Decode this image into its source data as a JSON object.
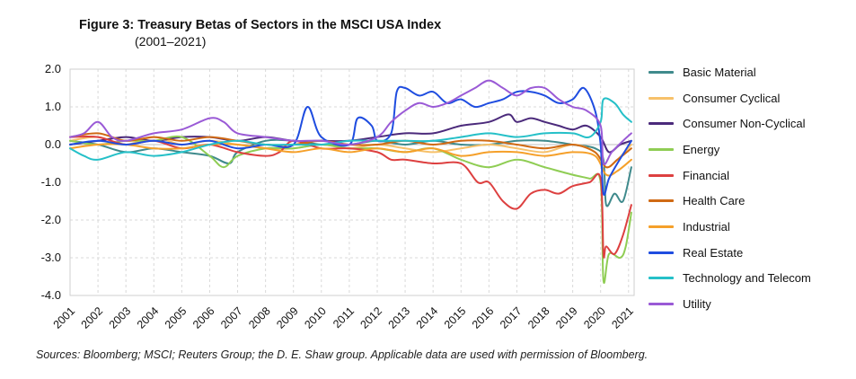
{
  "chart_data": {
    "type": "line",
    "title": "Figure 3: Treasury Betas of Sectors in the MSCI USA Index",
    "subtitle": "(2001–2021)",
    "xlabel": "",
    "ylabel": "",
    "xlim": [
      2001,
      2021.2
    ],
    "ylim": [
      -4.0,
      2.0
    ],
    "ytick_labels": [
      "2.0",
      "1.0",
      "0.0",
      "-1.0",
      "-2.0",
      "-3.0",
      "-4.0"
    ],
    "yticks": [
      2.0,
      1.0,
      0.0,
      -1.0,
      -2.0,
      -3.0,
      -4.0
    ],
    "xticks": [
      2001,
      2002,
      2003,
      2004,
      2005,
      2006,
      2007,
      2008,
      2009,
      2010,
      2011,
      2012,
      2013,
      2014,
      2015,
      2016,
      2017,
      2018,
      2019,
      2020,
      2021
    ],
    "xtick_labels": [
      "2001",
      "2002",
      "2003",
      "2004",
      "2005",
      "2006",
      "2007",
      "2008",
      "2009",
      "2010",
      "2011",
      "2012",
      "2013",
      "2014",
      "2015",
      "2016",
      "2017",
      "2018",
      "2019",
      "2020",
      "2021"
    ],
    "grid": true,
    "legend_position": "right",
    "series": [
      {
        "name": "Basic Material",
        "color": "#3f8a8c",
        "points": [
          [
            2001,
            0.1
          ],
          [
            2002,
            0.0
          ],
          [
            2003,
            -0.2
          ],
          [
            2004,
            -0.1
          ],
          [
            2005,
            -0.2
          ],
          [
            2006,
            -0.3
          ],
          [
            2006.7,
            -0.5
          ],
          [
            2007,
            -0.2
          ],
          [
            2008,
            0.1
          ],
          [
            2009,
            0.1
          ],
          [
            2010,
            0.0
          ],
          [
            2011,
            0.0
          ],
          [
            2012,
            0.1
          ],
          [
            2013,
            0.0
          ],
          [
            2014,
            0.1
          ],
          [
            2015,
            0.0
          ],
          [
            2016,
            0.0
          ],
          [
            2017,
            0.1
          ],
          [
            2018,
            0.1
          ],
          [
            2019,
            0.0
          ],
          [
            2019.8,
            -0.1
          ],
          [
            2020.1,
            -0.4
          ],
          [
            2020.2,
            -1.6
          ],
          [
            2020.5,
            -1.3
          ],
          [
            2020.8,
            -1.5
          ],
          [
            2021.1,
            -0.6
          ]
        ]
      },
      {
        "name": "Consumer Cyclical",
        "color": "#f7c16a",
        "points": [
          [
            2001,
            0.1
          ],
          [
            2002,
            0.2
          ],
          [
            2003,
            0.0
          ],
          [
            2004,
            0.2
          ],
          [
            2005,
            0.0
          ],
          [
            2006,
            0.1
          ],
          [
            2007,
            0.0
          ],
          [
            2008,
            -0.1
          ],
          [
            2009,
            -0.1
          ],
          [
            2010,
            0.0
          ],
          [
            2011,
            -0.1
          ],
          [
            2012,
            0.0
          ],
          [
            2013,
            -0.1
          ],
          [
            2014,
            -0.2
          ],
          [
            2015,
            -0.1
          ],
          [
            2016,
            0.0
          ],
          [
            2017,
            -0.1
          ],
          [
            2018,
            -0.2
          ],
          [
            2019,
            0.0
          ],
          [
            2019.8,
            -0.2
          ],
          [
            2020.2,
            -0.6
          ],
          [
            2020.6,
            -0.4
          ],
          [
            2021.1,
            0.0
          ]
        ]
      },
      {
        "name": "Consumer Non-Cyclical",
        "color": "#4b2a7b",
        "points": [
          [
            2001,
            0.0
          ],
          [
            2002,
            0.1
          ],
          [
            2003,
            0.2
          ],
          [
            2004,
            0.1
          ],
          [
            2005,
            0.2
          ],
          [
            2006,
            0.2
          ],
          [
            2007,
            0.1
          ],
          [
            2008,
            0.2
          ],
          [
            2009,
            0.1
          ],
          [
            2010,
            0.1
          ],
          [
            2011,
            0.1
          ],
          [
            2012,
            0.2
          ],
          [
            2013,
            0.3
          ],
          [
            2014,
            0.3
          ],
          [
            2015,
            0.5
          ],
          [
            2016,
            0.6
          ],
          [
            2016.7,
            0.8
          ],
          [
            2017,
            0.6
          ],
          [
            2017.5,
            0.7
          ],
          [
            2018,
            0.6
          ],
          [
            2018.5,
            0.5
          ],
          [
            2019,
            0.4
          ],
          [
            2019.5,
            0.5
          ],
          [
            2020,
            0.2
          ],
          [
            2020.3,
            -0.2
          ],
          [
            2020.7,
            0.0
          ],
          [
            2021.1,
            0.1
          ]
        ]
      },
      {
        "name": "Energy",
        "color": "#8fcd54",
        "points": [
          [
            2001,
            0.1
          ],
          [
            2002,
            0.0
          ],
          [
            2003,
            0.1
          ],
          [
            2004,
            0.1
          ],
          [
            2005,
            0.2
          ],
          [
            2006,
            -0.3
          ],
          [
            2006.5,
            -0.6
          ],
          [
            2007,
            -0.3
          ],
          [
            2008,
            -0.1
          ],
          [
            2009,
            -0.1
          ],
          [
            2010,
            0.0
          ],
          [
            2011,
            -0.1
          ],
          [
            2012,
            -0.1
          ],
          [
            2013,
            -0.2
          ],
          [
            2014,
            -0.1
          ],
          [
            2015,
            -0.4
          ],
          [
            2016,
            -0.6
          ],
          [
            2017,
            -0.4
          ],
          [
            2018,
            -0.6
          ],
          [
            2019,
            -0.8
          ],
          [
            2019.6,
            -0.9
          ],
          [
            2020.0,
            -1.0
          ],
          [
            2020.1,
            -3.6
          ],
          [
            2020.3,
            -2.9
          ],
          [
            2020.7,
            -3.0
          ],
          [
            2020.9,
            -2.7
          ],
          [
            2021.1,
            -1.8
          ]
        ]
      },
      {
        "name": "Financial",
        "color": "#dd4040",
        "points": [
          [
            2001,
            0.2
          ],
          [
            2002,
            0.2
          ],
          [
            2003,
            0.0
          ],
          [
            2004,
            0.1
          ],
          [
            2005,
            -0.1
          ],
          [
            2006,
            0.0
          ],
          [
            2007,
            -0.2
          ],
          [
            2008,
            -0.3
          ],
          [
            2008.5,
            -0.2
          ],
          [
            2009,
            0.1
          ],
          [
            2010,
            -0.1
          ],
          [
            2011,
            -0.1
          ],
          [
            2012,
            -0.2
          ],
          [
            2012.5,
            -0.4
          ],
          [
            2013,
            -0.4
          ],
          [
            2014,
            -0.5
          ],
          [
            2015,
            -0.5
          ],
          [
            2015.6,
            -1.0
          ],
          [
            2016,
            -1.0
          ],
          [
            2016.5,
            -1.5
          ],
          [
            2017,
            -1.7
          ],
          [
            2017.5,
            -1.3
          ],
          [
            2018,
            -1.2
          ],
          [
            2018.5,
            -1.3
          ],
          [
            2019,
            -1.1
          ],
          [
            2019.6,
            -1.0
          ],
          [
            2020.0,
            -0.9
          ],
          [
            2020.1,
            -2.9
          ],
          [
            2020.2,
            -2.7
          ],
          [
            2020.5,
            -2.9
          ],
          [
            2020.8,
            -2.4
          ],
          [
            2021.1,
            -1.6
          ]
        ]
      },
      {
        "name": "Health Care",
        "color": "#d06a14",
        "points": [
          [
            2001,
            0.2
          ],
          [
            2002,
            0.3
          ],
          [
            2003,
            0.1
          ],
          [
            2004,
            0.2
          ],
          [
            2005,
            0.1
          ],
          [
            2006,
            0.2
          ],
          [
            2007,
            0.1
          ],
          [
            2008,
            0.0
          ],
          [
            2009,
            0.0
          ],
          [
            2010,
            0.1
          ],
          [
            2011,
            0.0
          ],
          [
            2012,
            0.0
          ],
          [
            2013,
            0.1
          ],
          [
            2014,
            0.0
          ],
          [
            2015,
            0.1
          ],
          [
            2016,
            0.1
          ],
          [
            2017,
            0.0
          ],
          [
            2018,
            -0.1
          ],
          [
            2019,
            0.0
          ],
          [
            2019.8,
            -0.2
          ],
          [
            2020.2,
            -0.6
          ],
          [
            2020.6,
            -0.4
          ],
          [
            2021.1,
            -0.1
          ]
        ]
      },
      {
        "name": "Industrial",
        "color": "#f5a02a",
        "points": [
          [
            2001,
            -0.1
          ],
          [
            2002,
            0.0
          ],
          [
            2003,
            0.0
          ],
          [
            2004,
            -0.1
          ],
          [
            2005,
            -0.1
          ],
          [
            2006,
            0.0
          ],
          [
            2007,
            0.0
          ],
          [
            2008,
            -0.1
          ],
          [
            2009,
            -0.2
          ],
          [
            2010,
            -0.1
          ],
          [
            2011,
            -0.2
          ],
          [
            2012,
            -0.1
          ],
          [
            2013,
            -0.2
          ],
          [
            2014,
            -0.1
          ],
          [
            2015,
            -0.3
          ],
          [
            2016,
            -0.2
          ],
          [
            2017,
            -0.2
          ],
          [
            2018,
            -0.3
          ],
          [
            2019,
            -0.2
          ],
          [
            2019.8,
            -0.3
          ],
          [
            2020.2,
            -0.8
          ],
          [
            2020.6,
            -0.7
          ],
          [
            2021.1,
            -0.4
          ]
        ]
      },
      {
        "name": "Real Estate",
        "color": "#1f4de0",
        "points": [
          [
            2001,
            0.0
          ],
          [
            2002,
            0.1
          ],
          [
            2003,
            0.0
          ],
          [
            2004,
            0.1
          ],
          [
            2005,
            0.0
          ],
          [
            2006,
            0.1
          ],
          [
            2007,
            -0.1
          ],
          [
            2008,
            0.0
          ],
          [
            2009,
            0.0
          ],
          [
            2009.5,
            1.0
          ],
          [
            2010,
            0.2
          ],
          [
            2011,
            0.0
          ],
          [
            2011.3,
            0.7
          ],
          [
            2011.8,
            0.5
          ],
          [
            2012,
            0.1
          ],
          [
            2012.5,
            0.3
          ],
          [
            2012.7,
            1.4
          ],
          [
            2013,
            1.5
          ],
          [
            2013.5,
            1.3
          ],
          [
            2014,
            1.4
          ],
          [
            2014.5,
            1.1
          ],
          [
            2015,
            1.2
          ],
          [
            2015.5,
            1.0
          ],
          [
            2016,
            1.1
          ],
          [
            2016.5,
            1.2
          ],
          [
            2017,
            1.4
          ],
          [
            2017.5,
            1.4
          ],
          [
            2018,
            1.3
          ],
          [
            2018.5,
            1.1
          ],
          [
            2019,
            1.2
          ],
          [
            2019.4,
            1.5
          ],
          [
            2019.8,
            0.9
          ],
          [
            2020.0,
            0.0
          ],
          [
            2020.1,
            -1.3
          ],
          [
            2020.3,
            -0.9
          ],
          [
            2020.6,
            -0.5
          ],
          [
            2021.1,
            0.1
          ]
        ]
      },
      {
        "name": "Technology and Telecom",
        "color": "#25c0c8",
        "points": [
          [
            2001,
            -0.1
          ],
          [
            2001.5,
            -0.3
          ],
          [
            2002,
            -0.4
          ],
          [
            2003,
            -0.2
          ],
          [
            2004,
            -0.3
          ],
          [
            2005,
            -0.2
          ],
          [
            2006,
            0.0
          ],
          [
            2007,
            0.1
          ],
          [
            2008,
            0.0
          ],
          [
            2009,
            0.0
          ],
          [
            2010,
            0.0
          ],
          [
            2011,
            0.1
          ],
          [
            2012,
            0.1
          ],
          [
            2013,
            0.1
          ],
          [
            2014,
            0.1
          ],
          [
            2015,
            0.2
          ],
          [
            2016,
            0.3
          ],
          [
            2017,
            0.2
          ],
          [
            2018,
            0.3
          ],
          [
            2019,
            0.3
          ],
          [
            2019.6,
            0.2
          ],
          [
            2020.0,
            0.6
          ],
          [
            2020.1,
            1.2
          ],
          [
            2020.5,
            1.1
          ],
          [
            2020.8,
            0.8
          ],
          [
            2021.1,
            0.6
          ]
        ]
      },
      {
        "name": "Utility",
        "color": "#9a5ad6",
        "points": [
          [
            2001,
            0.2
          ],
          [
            2001.5,
            0.3
          ],
          [
            2002,
            0.6
          ],
          [
            2002.5,
            0.2
          ],
          [
            2003,
            0.1
          ],
          [
            2004,
            0.3
          ],
          [
            2005,
            0.4
          ],
          [
            2006,
            0.7
          ],
          [
            2006.5,
            0.6
          ],
          [
            2007,
            0.3
          ],
          [
            2008,
            0.2
          ],
          [
            2009,
            0.1
          ],
          [
            2010,
            0.1
          ],
          [
            2011,
            0.0
          ],
          [
            2012,
            0.2
          ],
          [
            2012.5,
            0.6
          ],
          [
            2013,
            0.9
          ],
          [
            2013.5,
            1.1
          ],
          [
            2014,
            1.0
          ],
          [
            2014.5,
            1.1
          ],
          [
            2015,
            1.3
          ],
          [
            2015.5,
            1.5
          ],
          [
            2016,
            1.7
          ],
          [
            2016.5,
            1.5
          ],
          [
            2017,
            1.3
          ],
          [
            2017.5,
            1.5
          ],
          [
            2018,
            1.5
          ],
          [
            2018.5,
            1.2
          ],
          [
            2019,
            1.0
          ],
          [
            2019.5,
            0.9
          ],
          [
            2020.0,
            0.5
          ],
          [
            2020.1,
            -0.5
          ],
          [
            2020.4,
            -0.2
          ],
          [
            2020.8,
            0.1
          ],
          [
            2021.1,
            0.3
          ]
        ]
      }
    ]
  },
  "source_note": "Sources: Bloomberg; MSCI; Reuters Group; the D. E. Shaw group. Applicable data are used with permission of Bloomberg."
}
